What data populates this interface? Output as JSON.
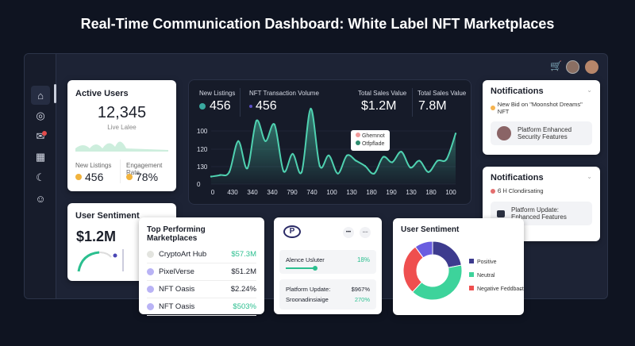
{
  "title": "Real-Time Communication Dashboard: White Label NFT Marketplaces",
  "sidebar": {
    "items": [
      {
        "icon": "home-icon",
        "glyph": "⌂"
      },
      {
        "icon": "camera-icon",
        "glyph": "◎"
      },
      {
        "icon": "messages-icon",
        "glyph": "✉"
      },
      {
        "icon": "calendar-icon",
        "glyph": "▦"
      },
      {
        "icon": "moon-icon",
        "glyph": "☾"
      },
      {
        "icon": "bot-icon",
        "glyph": "☺"
      }
    ]
  },
  "header": {
    "cart_icon": "cart-icon",
    "cart_glyph": "🛒"
  },
  "active_users": {
    "title": "Active Users",
    "value": "12,345",
    "sub": "Live Lalee",
    "new_listings_label": "New Listings",
    "new_listings": "456",
    "engagement_label": "Engagement Rate",
    "engagement": "78%"
  },
  "user_sentiment_small": {
    "title": "User Sentiment",
    "value": "$1.2M"
  },
  "main_chart": {
    "stats": [
      {
        "label": "New Listings",
        "value": "456"
      },
      {
        "label": "NFT Transaction Volume",
        "value": "456"
      },
      {
        "label": "Total Sales Value",
        "value": "$1.2M"
      },
      {
        "label": "Total Sales Value",
        "value": "7.8M"
      }
    ],
    "tooltip": [
      "Ghemnot",
      "Otfpflade"
    ]
  },
  "chart_data": {
    "type": "area",
    "color": "#4fd1b0",
    "yticks": [
      "100",
      "120",
      "130",
      "0"
    ],
    "xticks": [
      "0",
      "430",
      "340",
      "340",
      "790",
      "740",
      "100",
      "130",
      "180",
      "190",
      "130",
      "180",
      "100"
    ],
    "values": [
      10,
      12,
      16,
      57,
      21,
      84,
      57,
      79,
      17,
      40,
      16,
      100,
      24,
      38,
      14,
      38,
      31,
      24,
      14,
      36,
      29,
      43,
      22,
      31,
      16,
      31,
      33,
      67
    ],
    "grid": true
  },
  "notifications": [
    {
      "title": "Notifications",
      "item": "New Bid on \"Moonshot Dreams\" NFT",
      "item_color": "#f5b350",
      "box": "Platform Enhanced Security Features"
    },
    {
      "title": "Notifications",
      "item": "Ꮾ Ꮋ Clondirsating",
      "item_color": "#e46f6f",
      "box": "Platform Update: Enhanced Features"
    }
  ],
  "top_marketplaces": {
    "title": "Top Performing Marketplaces",
    "rows": [
      {
        "name": "CryptoArt Hub",
        "value": "$57.3M",
        "color": "#2bbf8f"
      },
      {
        "name": "PixelVerse",
        "value": "$51.2M",
        "color": "#1b1f2a"
      },
      {
        "name": "NFT Oasis",
        "value": "$2.24%",
        "color": "#1b1f2a"
      },
      {
        "name": "NFT Oasis",
        "value": "$503%",
        "color": "#2bbf8f"
      }
    ]
  },
  "mini_card": {
    "logo": "P",
    "more": "•••",
    "minus": "−−",
    "slider_label": "Alence Usluter",
    "slider_value": "18%",
    "slider_fraction": 0.35,
    "rows": [
      {
        "label": "Platform Update:",
        "value": "$967%"
      },
      {
        "label": "Sroonadinsiaige",
        "value": "270%"
      }
    ]
  },
  "sentiment": {
    "title": "User Sentiment",
    "legend": [
      {
        "label": "Positive",
        "color": "#3d3b8e",
        "share": 22
      },
      {
        "label": "Neutral",
        "color": "#3dd39b",
        "share": 40
      },
      {
        "label": "Negative Feddbaɕt",
        "color": "#ef4f4f",
        "share": 28
      }
    ],
    "other": {
      "color": "#6a5de0",
      "share": 10
    }
  }
}
